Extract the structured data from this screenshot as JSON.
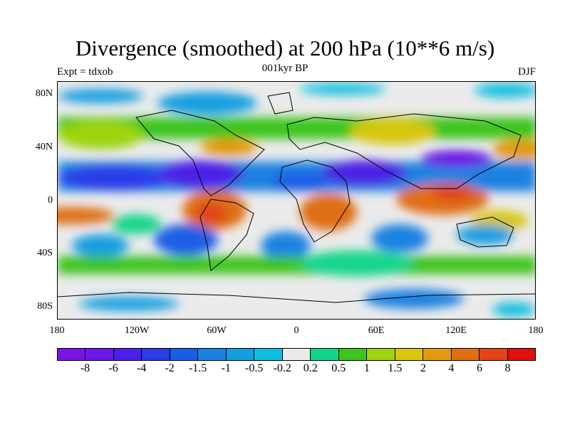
{
  "header": {
    "title": "Divergence (smoothed) at 200 hPa (10**6 m/s)",
    "subtitle": "001kyr BP",
    "left": "Expt = tdxob",
    "right": "DJF"
  },
  "map": {
    "lat_labels": [
      "80N",
      "40N",
      "0",
      "40S",
      "80S"
    ],
    "lon_labels": [
      "180",
      "120W",
      "60W",
      "0",
      "60E",
      "120E",
      "180"
    ]
  },
  "colorbar": {
    "colors": [
      "#7a14e0",
      "#6a18e6",
      "#4c20e6",
      "#2c3ce8",
      "#1b5ee6",
      "#1b82e2",
      "#149fe0",
      "#10bee0",
      "#ebebeb",
      "#12d58a",
      "#3ec41c",
      "#9ed410",
      "#d8c610",
      "#e29a10",
      "#e06e12",
      "#e04418",
      "#de1010"
    ],
    "labels": [
      "-8",
      "-6",
      "-4",
      "-2",
      "-1.5",
      "-1",
      "-0.5",
      "-0.2",
      "0.2",
      "0.5",
      "1",
      "1.5",
      "2",
      "4",
      "6",
      "8"
    ]
  }
}
